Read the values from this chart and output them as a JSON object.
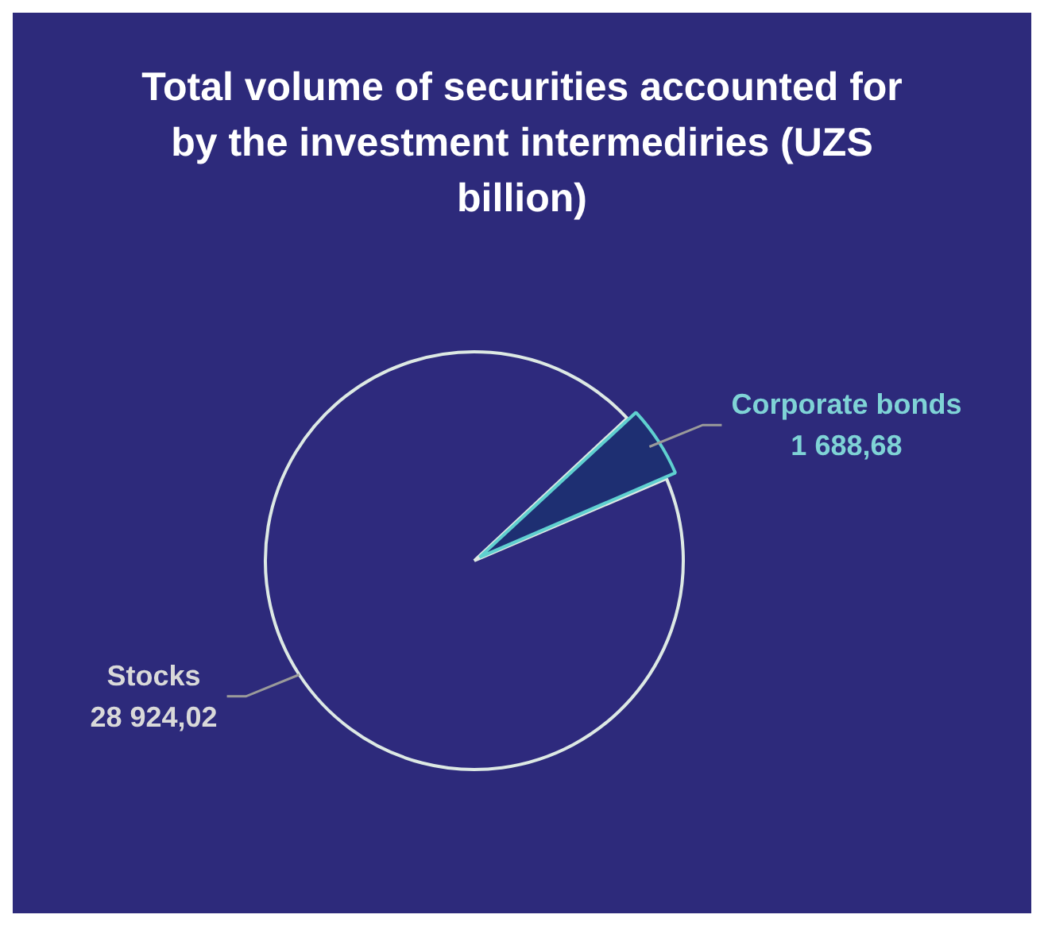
{
  "chart_data": {
    "type": "pie",
    "title": "Total volume of securities accounted for by the investment intermediries (UZS billion)",
    "categories": [
      "Stocks",
      "Corporate bonds"
    ],
    "values": [
      28924.02,
      1688.68
    ],
    "value_labels": [
      "28 924,02",
      "1 688,68"
    ],
    "colors": [
      "#2e2a7d",
      "#1e2f72"
    ],
    "legend": false
  }
}
